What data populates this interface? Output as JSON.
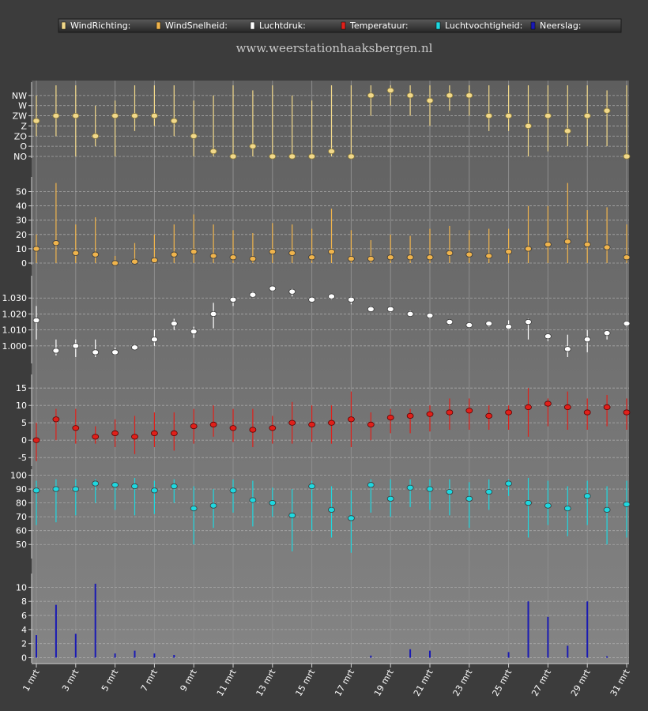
{
  "website": "www.weerstationhaaksbergen.nl",
  "legend": [
    {
      "label": "WindRichting:",
      "color": "#f2d98a"
    },
    {
      "label": "WindSnelheid:",
      "color": "#f0b44c"
    },
    {
      "label": "Luchtdruk:",
      "color": "#ffffff"
    },
    {
      "label": "Temperatuur:",
      "color": "#e0201a"
    },
    {
      "label": "Luchtvochtigheid:",
      "color": "#1ed8e0"
    },
    {
      "label": "Neerslag:",
      "color": "#1a1ab4"
    }
  ],
  "x_tick_labels": [
    "1 mrt",
    "3 mrt",
    "5 mrt",
    "7 mrt",
    "9 mrt",
    "11 mrt",
    "13 mrt",
    "15 mrt",
    "17 mrt",
    "19 mrt",
    "21 mrt",
    "23 mrt",
    "25 mrt",
    "27 mrt",
    "29 mrt",
    "31 mrt"
  ],
  "chart_data": [
    {
      "type": "scatter",
      "name": "WindRichting",
      "color": "#f2d98a",
      "y_tick_labels": [
        "NW",
        "W",
        "ZW",
        "Z",
        "ZO",
        "O",
        "NO"
      ],
      "ylim": [
        0,
        7
      ],
      "x": [
        1,
        2,
        3,
        4,
        5,
        6,
        7,
        8,
        9,
        10,
        11,
        12,
        13,
        14,
        15,
        16,
        17,
        18,
        19,
        20,
        21,
        22,
        23,
        24,
        25,
        26,
        27,
        28,
        29,
        30,
        31
      ],
      "values": [
        3.5,
        4,
        4,
        2,
        4,
        4,
        4,
        3.5,
        2,
        0.5,
        0,
        1,
        0,
        0,
        0,
        0.5,
        0,
        6,
        6.5,
        6,
        5.5,
        6,
        6,
        4,
        4,
        3,
        4,
        2.5,
        4,
        4.5,
        0
      ],
      "low": [
        2,
        2,
        0,
        1,
        0,
        2.5,
        3,
        2,
        0,
        0,
        0,
        0,
        0,
        0,
        0,
        0,
        0,
        4,
        5,
        4,
        3,
        4.5,
        4,
        2.5,
        2.5,
        0,
        0.5,
        1,
        1,
        1,
        0
      ],
      "high": [
        6,
        7,
        7,
        5,
        5.5,
        7,
        7,
        7,
        5.5,
        6,
        7,
        6.5,
        7,
        6,
        5.5,
        7,
        7,
        7,
        7,
        7,
        7,
        7,
        7,
        7,
        7,
        7,
        7,
        7,
        7,
        6.5,
        7
      ]
    },
    {
      "type": "scatter",
      "name": "WindSnelheid",
      "color": "#f0b44c",
      "yticks": [
        0,
        10,
        20,
        30,
        40,
        50
      ],
      "ylim": [
        0,
        58
      ],
      "x": [
        1,
        2,
        3,
        4,
        5,
        6,
        7,
        8,
        9,
        10,
        11,
        12,
        13,
        14,
        15,
        16,
        17,
        18,
        19,
        20,
        21,
        22,
        23,
        24,
        25,
        26,
        27,
        28,
        29,
        30,
        31
      ],
      "values": [
        10,
        14,
        7,
        6,
        0,
        1,
        2,
        6,
        8,
        5,
        4,
        3,
        8,
        7,
        4,
        8,
        3,
        3,
        4,
        4,
        4,
        7,
        6,
        5,
        8,
        10,
        13,
        15,
        13,
        11,
        4
      ],
      "low": [
        0,
        0,
        0,
        0,
        0,
        0,
        0,
        0,
        0,
        0,
        0,
        0,
        0,
        0,
        0,
        0,
        0,
        0,
        0,
        0,
        0,
        0,
        0,
        0,
        0,
        0,
        0,
        0,
        0,
        0,
        0
      ],
      "high": [
        20,
        56,
        27,
        32,
        5,
        14,
        20,
        27,
        34,
        27,
        23,
        21,
        28,
        27,
        24,
        38,
        23,
        16,
        20,
        19,
        24,
        26,
        23,
        24,
        24,
        40,
        40,
        56,
        37,
        39,
        27
      ]
    },
    {
      "type": "scatter",
      "name": "Luchtdruk",
      "color": "#ffffff",
      "yticks": [
        1000,
        1010,
        1020,
        1030
      ],
      "y_tick_labels": [
        "1.000",
        "1.010",
        "1.020",
        "1.030"
      ],
      "ylim": [
        990,
        1042
      ],
      "x": [
        1,
        2,
        3,
        4,
        5,
        6,
        7,
        8,
        9,
        10,
        11,
        12,
        13,
        14,
        15,
        16,
        17,
        18,
        19,
        20,
        21,
        22,
        23,
        24,
        25,
        26,
        27,
        28,
        29,
        30,
        31
      ],
      "values": [
        1016,
        997,
        1000,
        996,
        996,
        999,
        1004,
        1014,
        1009,
        1020,
        1029,
        1032,
        1036,
        1034,
        1029,
        1031,
        1029,
        1023,
        1023,
        1020,
        1019,
        1015,
        1013,
        1014,
        1012,
        1015,
        1006,
        998,
        1004,
        1008,
        1014
      ],
      "low": [
        1004,
        994,
        993,
        993,
        994,
        998,
        1000,
        1010,
        1005,
        1011,
        1025,
        1030,
        1034,
        1031,
        1028,
        1029,
        1026,
        1022,
        1021,
        1019,
        1017,
        1013,
        1012,
        1012,
        1010,
        1004,
        1003,
        993,
        996,
        1004,
        1012
      ],
      "high": [
        1025,
        1004,
        1004,
        1004,
        999,
        1001,
        1010,
        1017,
        1012,
        1027,
        1031,
        1034,
        1037,
        1036,
        1030,
        1032,
        1031,
        1025,
        1024,
        1022,
        1020,
        1016,
        1014,
        1015,
        1016,
        1017,
        1007,
        1007,
        1010,
        1010,
        1015
      ]
    },
    {
      "type": "scatter",
      "name": "Temperatuur",
      "color": "#e0201a",
      "yticks": [
        -5,
        0,
        5,
        10,
        15
      ],
      "ylim": [
        -7,
        18
      ],
      "x": [
        1,
        2,
        3,
        4,
        5,
        6,
        7,
        8,
        9,
        10,
        11,
        12,
        13,
        14,
        15,
        16,
        17,
        18,
        19,
        20,
        21,
        22,
        23,
        24,
        25,
        26,
        27,
        28,
        29,
        30,
        31
      ],
      "values": [
        0,
        6,
        3.5,
        1,
        2,
        1,
        2,
        2,
        4,
        4.5,
        3.5,
        3,
        3.5,
        5,
        4.5,
        5,
        6,
        4.5,
        6.5,
        7,
        7.5,
        8,
        8.5,
        7,
        8,
        9.5,
        10.5,
        9.5,
        8,
        9.5,
        8
      ],
      "low": [
        -6,
        0,
        -1,
        -1,
        -2,
        -4,
        -2,
        -3,
        -1,
        1,
        -0.5,
        -2,
        -1,
        -1,
        -0.5,
        -1,
        -2,
        0,
        2,
        2,
        2.5,
        3,
        3,
        3,
        3,
        1,
        4,
        3,
        3,
        4,
        3
      ],
      "high": [
        5,
        9,
        9,
        4,
        6,
        7,
        8,
        8,
        9,
        10,
        9,
        9,
        7,
        11,
        10,
        10,
        14,
        8,
        9,
        9,
        10,
        12,
        12,
        10,
        10,
        15,
        12,
        14,
        12,
        13,
        12
      ]
    },
    {
      "type": "scatter",
      "name": "Luchtvochtigheid",
      "color": "#1ed8e0",
      "yticks": [
        50,
        60,
        70,
        80,
        90,
        100
      ],
      "ylim": [
        41,
        102
      ],
      "x": [
        1,
        2,
        3,
        4,
        5,
        6,
        7,
        8,
        9,
        10,
        11,
        12,
        13,
        14,
        15,
        16,
        17,
        18,
        19,
        20,
        21,
        22,
        23,
        24,
        25,
        26,
        27,
        28,
        29,
        30,
        31
      ],
      "values": [
        89,
        90,
        90,
        94,
        93,
        92,
        89,
        92,
        76,
        78,
        89,
        82,
        80,
        71,
        92,
        75,
        69,
        93,
        83,
        91,
        90,
        88,
        83,
        88,
        94,
        80,
        78,
        76,
        85,
        75,
        79
      ],
      "low": [
        64,
        66,
        71,
        80,
        75,
        71,
        72,
        80,
        50,
        62,
        73,
        63,
        70,
        45,
        60,
        55,
        44,
        73,
        70,
        77,
        75,
        71,
        62,
        75,
        85,
        55,
        64,
        56,
        64,
        50,
        55
      ],
      "high": [
        96,
        97,
        97,
        97,
        95,
        98,
        96,
        97,
        92,
        90,
        97,
        96,
        91,
        90,
        96,
        92,
        89,
        97,
        97,
        97,
        97,
        97,
        95,
        97,
        97,
        98,
        96,
        92,
        96,
        92,
        96
      ]
    },
    {
      "type": "bar",
      "name": "Neerslag",
      "color": "#1a1ab4",
      "yticks": [
        0,
        2,
        4,
        6,
        8,
        10
      ],
      "ylim": [
        -0.5,
        11.5
      ],
      "x": [
        1,
        2,
        3,
        4,
        5,
        6,
        7,
        8,
        9,
        10,
        11,
        12,
        13,
        14,
        15,
        16,
        17,
        18,
        19,
        20,
        21,
        22,
        23,
        24,
        25,
        26,
        27,
        28,
        29,
        30,
        31
      ],
      "values": [
        3.2,
        7.5,
        3.4,
        10.5,
        0.6,
        1,
        0.6,
        0.4,
        0,
        0,
        0,
        0,
        0,
        0,
        0,
        0,
        0,
        0.3,
        0,
        1.2,
        1,
        0,
        0,
        0,
        0.8,
        8,
        5.8,
        1.7,
        8,
        0.2,
        0
      ]
    }
  ]
}
